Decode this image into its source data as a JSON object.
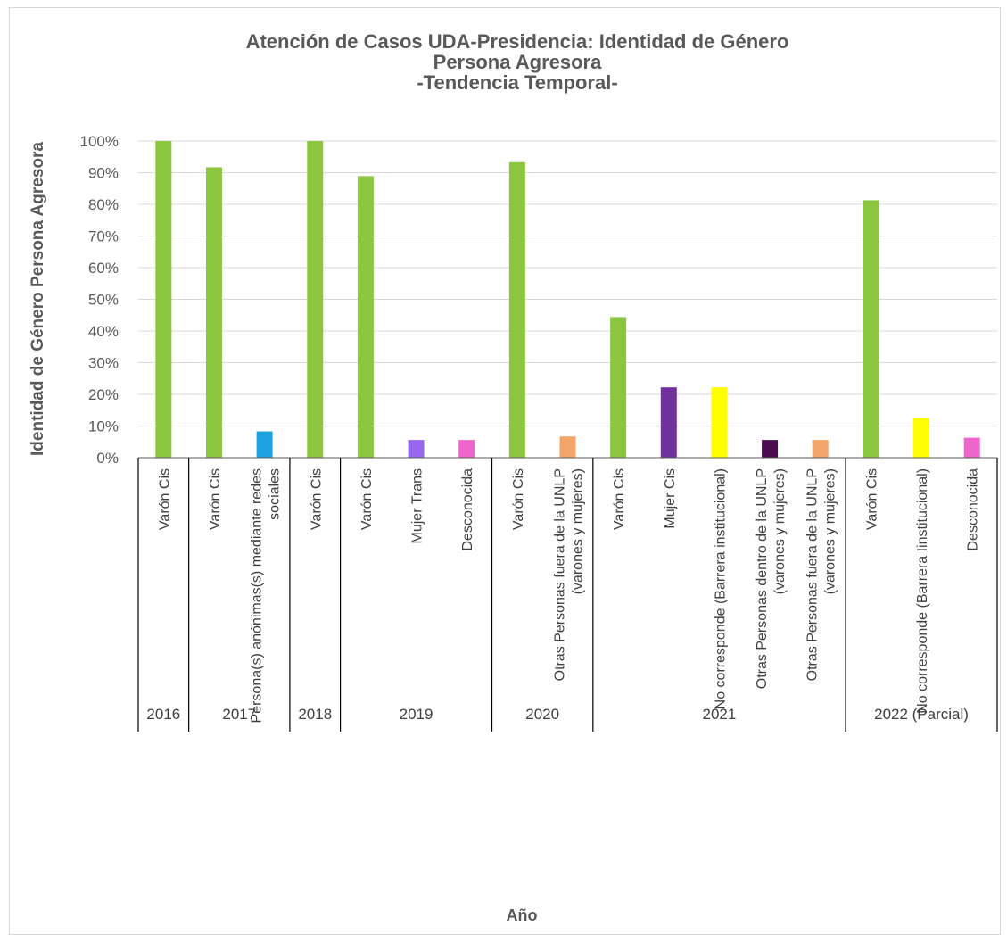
{
  "chart_data": {
    "type": "bar",
    "title": [
      "Atención de Casos UDA-Presidencia: Identidad de Género",
      "Persona Agresora",
      "-Tendencia Temporal-"
    ],
    "xlabel": "Año",
    "ylabel": "Identidad de Género Persona Agresora",
    "ylim": [
      0,
      100
    ],
    "yticks": [
      "0%",
      "10%",
      "20%",
      "30%",
      "40%",
      "50%",
      "60%",
      "70%",
      "80%",
      "90%",
      "100%"
    ],
    "grid": true,
    "groups": [
      {
        "year": "2016",
        "start": 0,
        "count": 1
      },
      {
        "year": "2017",
        "start": 1,
        "count": 2
      },
      {
        "year": "2018",
        "start": 3,
        "count": 1
      },
      {
        "year": "2019",
        "start": 4,
        "count": 3
      },
      {
        "year": "2020",
        "start": 7,
        "count": 2
      },
      {
        "year": "2021",
        "start": 9,
        "count": 5
      },
      {
        "year": "2022 (Parcial)",
        "start": 14,
        "count": 3
      }
    ],
    "bars": [
      {
        "label": [
          "Varón Cis"
        ],
        "value": 100,
        "color": "#8cc63f"
      },
      {
        "label": [
          "Varón Cis"
        ],
        "value": 91.7,
        "color": "#8cc63f"
      },
      {
        "label": [
          "Persona(s) anónimas(s) mediante redes",
          "sociales"
        ],
        "value": 8.3,
        "color": "#1ca3e0"
      },
      {
        "label": [
          "Varón Cis"
        ],
        "value": 100,
        "color": "#8cc63f"
      },
      {
        "label": [
          "Varón Cis"
        ],
        "value": 88.9,
        "color": "#8cc63f"
      },
      {
        "label": [
          "Mujer Trans"
        ],
        "value": 5.6,
        "color": "#9966ee"
      },
      {
        "label": [
          "Desconocida"
        ],
        "value": 5.6,
        "color": "#ee66cc"
      },
      {
        "label": [
          "Varón Cis"
        ],
        "value": 93.3,
        "color": "#8cc63f"
      },
      {
        "label": [
          "Otras Personas fuera de la UNLP",
          "(varones y mujeres)"
        ],
        "value": 6.7,
        "color": "#f4a66a"
      },
      {
        "label": [
          "Varón Cis"
        ],
        "value": 44.4,
        "color": "#8cc63f"
      },
      {
        "label": [
          "Mujer Cis"
        ],
        "value": 22.2,
        "color": "#7030a0"
      },
      {
        "label": [
          "No corresponde (Barrera institucional)"
        ],
        "value": 22.2,
        "color": "#ffff00"
      },
      {
        "label": [
          "Otras Personas dentro de la UNLP",
          "(varones y mujeres)"
        ],
        "value": 5.6,
        "color": "#4b0b4f"
      },
      {
        "label": [
          "Otras Personas fuera de la UNLP",
          "(varones y mujeres)"
        ],
        "value": 5.6,
        "color": "#f4a66a"
      },
      {
        "label": [
          "Varón Cis"
        ],
        "value": 81.3,
        "color": "#8cc63f"
      },
      {
        "label": [
          "No corresponde (Barrera Iinstitucional)"
        ],
        "value": 12.5,
        "color": "#ffff00"
      },
      {
        "label": [
          "Desconocida"
        ],
        "value": 6.3,
        "color": "#ee66cc"
      }
    ]
  }
}
